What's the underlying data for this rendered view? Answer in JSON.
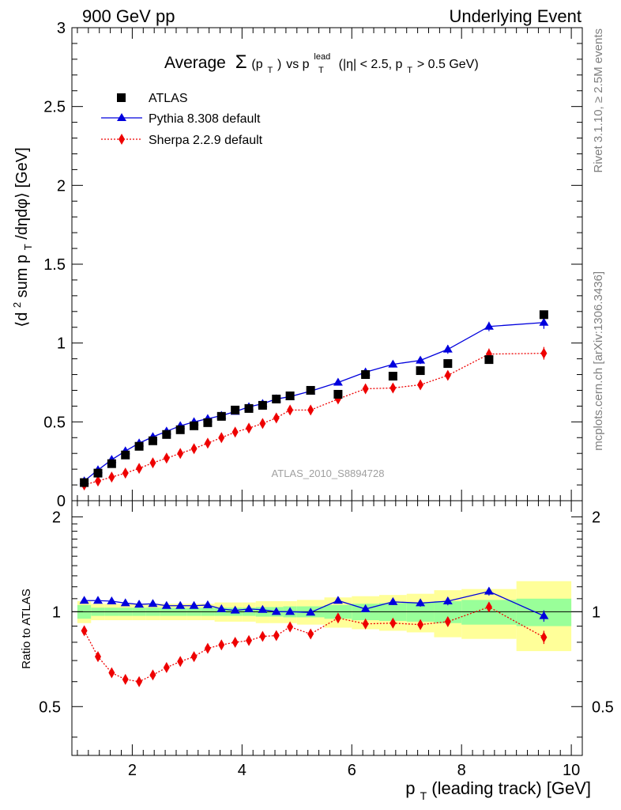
{
  "header": {
    "left": "900 GeV pp",
    "right": "Underlying Event"
  },
  "title": {
    "prefix": "Average",
    "sigma": "Σ",
    "sigma_arg": "(p",
    "sigma_sub": "T",
    "sigma_close": ")",
    "vs": " vs p",
    "vs_sub": "T",
    "vs_sup": "lead",
    "cut1": " (|η| < 2.5, p",
    "cut_sub": "T",
    "cut2": " > 0.5 GeV)"
  },
  "side_labels": {
    "top": "Rivet 3.1.10, ≥ 2.5M events",
    "bottom": "mcplots.cern.ch [arXiv:1306.3436]"
  },
  "watermark": "ATLAS_2010_S8894728",
  "colors": {
    "atlas": "#000000",
    "pythia": "#0000dd",
    "sherpa": "#ee0000",
    "band_inner": "#99ff99",
    "band_outer": "#ffff99"
  },
  "chart_data": [
    {
      "type": "scatter",
      "panel": "main",
      "ylabel": {
        "pre": "⟨d",
        "sup": "2",
        "mid": " sum p",
        "sub": "T",
        "post": "/dηdφ⟩ [GeV]"
      },
      "ylim": [
        0,
        3
      ],
      "xlim": [
        0.9,
        10.2
      ],
      "yticks": [
        {
          "v": 0,
          "label": "0"
        },
        {
          "v": 0.5,
          "label": "0.5"
        },
        {
          "v": 1,
          "label": "1"
        },
        {
          "v": 1.5,
          "label": "1.5"
        },
        {
          "v": 2,
          "label": "2"
        },
        {
          "v": 2.5,
          "label": "2.5"
        },
        {
          "v": 3,
          "label": "3"
        }
      ],
      "legend_position": "top-left",
      "x": [
        1.125,
        1.375,
        1.625,
        1.875,
        2.125,
        2.375,
        2.625,
        2.875,
        3.125,
        3.375,
        3.625,
        3.875,
        4.125,
        4.375,
        4.625,
        4.875,
        5.25,
        5.75,
        6.25,
        6.75,
        7.25,
        7.75,
        8.5,
        9.5
      ],
      "series": [
        {
          "name": "ATLAS",
          "marker": "square",
          "values": [
            0.115,
            0.175,
            0.235,
            0.29,
            0.345,
            0.38,
            0.42,
            0.45,
            0.475,
            0.495,
            0.535,
            0.575,
            0.585,
            0.605,
            0.645,
            0.665,
            0.7,
            0.675,
            0.8,
            0.79,
            0.825,
            0.87,
            0.895,
            1.18
          ]
        },
        {
          "name": "Pythia 8.308 default",
          "marker": "triangle",
          "values": [
            0.125,
            0.195,
            0.26,
            0.315,
            0.365,
            0.405,
            0.44,
            0.475,
            0.5,
            0.52,
            0.54,
            0.565,
            0.595,
            0.615,
            0.645,
            0.66,
            0.695,
            0.75,
            0.815,
            0.865,
            0.89,
            0.96,
            1.105,
            1.13
          ],
          "errors": [
            0.005,
            0.005,
            0.005,
            0.005,
            0.005,
            0.005,
            0.005,
            0.005,
            0.005,
            0.005,
            0.006,
            0.007,
            0.008,
            0.009,
            0.01,
            0.01,
            0.012,
            0.014,
            0.017,
            0.02,
            0.023,
            0.028,
            0.03,
            0.04
          ]
        },
        {
          "name": "Sherpa 2.2.9 default",
          "marker": "diamond",
          "values": [
            0.1,
            0.125,
            0.15,
            0.175,
            0.205,
            0.24,
            0.27,
            0.3,
            0.33,
            0.365,
            0.4,
            0.435,
            0.46,
            0.49,
            0.525,
            0.575,
            0.575,
            0.645,
            0.71,
            0.715,
            0.735,
            0.795,
            0.93,
            0.935
          ],
          "errors": [
            0.004,
            0.004,
            0.004,
            0.004,
            0.005,
            0.005,
            0.005,
            0.005,
            0.006,
            0.006,
            0.007,
            0.008,
            0.009,
            0.01,
            0.011,
            0.012,
            0.014,
            0.016,
            0.018,
            0.02,
            0.024,
            0.028,
            0.035,
            0.04
          ]
        }
      ]
    },
    {
      "type": "scatter",
      "panel": "ratio",
      "ylabel": "Ratio to ATLAS",
      "xlabel": {
        "pre": "p",
        "sub": "T",
        "post": " (leading track) [GeV]"
      },
      "ylim": [
        0.35,
        2.25
      ],
      "xlim": [
        0.9,
        10.2
      ],
      "yticks": [
        {
          "v": 0.5,
          "label": "0.5"
        },
        {
          "v": 1,
          "label": "1"
        },
        {
          "v": 2,
          "label": "2"
        }
      ],
      "xticks": [
        {
          "v": 2,
          "label": "2"
        },
        {
          "v": 4,
          "label": "4"
        },
        {
          "v": 6,
          "label": "6"
        },
        {
          "v": 8,
          "label": "8"
        },
        {
          "v": 10,
          "label": "10"
        }
      ],
      "bands": {
        "edges": [
          1.0,
          1.25,
          1.5,
          1.75,
          2.0,
          2.25,
          2.5,
          2.75,
          3.0,
          3.25,
          3.5,
          3.75,
          4.0,
          4.25,
          4.5,
          4.75,
          5.0,
          5.5,
          6.0,
          6.5,
          7.0,
          7.5,
          8.0,
          9.0,
          10.0
        ],
        "inner": [
          0.05,
          0.03,
          0.03,
          0.03,
          0.03,
          0.03,
          0.03,
          0.03,
          0.03,
          0.03,
          0.03,
          0.03,
          0.03,
          0.035,
          0.035,
          0.04,
          0.04,
          0.05,
          0.06,
          0.065,
          0.07,
          0.08,
          0.09,
          0.1
        ],
        "outer": [
          0.08,
          0.06,
          0.06,
          0.06,
          0.06,
          0.06,
          0.06,
          0.06,
          0.06,
          0.06,
          0.07,
          0.07,
          0.07,
          0.08,
          0.08,
          0.08,
          0.09,
          0.11,
          0.12,
          0.13,
          0.14,
          0.17,
          0.18,
          0.25
        ]
      },
      "x": [
        1.125,
        1.375,
        1.625,
        1.875,
        2.125,
        2.375,
        2.625,
        2.875,
        3.125,
        3.375,
        3.625,
        3.875,
        4.125,
        4.375,
        4.625,
        4.875,
        5.25,
        5.75,
        6.25,
        6.75,
        7.25,
        7.75,
        8.5,
        9.5
      ],
      "series": [
        {
          "name": "Pythia 8.308 default",
          "marker": "triangle",
          "values": [
            1.085,
            1.085,
            1.08,
            1.065,
            1.055,
            1.06,
            1.045,
            1.045,
            1.045,
            1.05,
            1.02,
            1.01,
            1.02,
            1.015,
            1.0,
            1.0,
            0.995,
            1.085,
            1.02,
            1.075,
            1.065,
            1.08,
            1.16,
            0.97
          ],
          "errors": [
            0.01,
            0.01,
            0.01,
            0.01,
            0.01,
            0.01,
            0.01,
            0.01,
            0.01,
            0.01,
            0.01,
            0.012,
            0.013,
            0.014,
            0.015,
            0.016,
            0.018,
            0.02,
            0.022,
            0.025,
            0.028,
            0.032,
            0.035,
            0.04
          ]
        },
        {
          "name": "Sherpa 2.2.9 default",
          "marker": "diamond",
          "values": [
            0.87,
            0.72,
            0.64,
            0.61,
            0.6,
            0.63,
            0.665,
            0.695,
            0.72,
            0.765,
            0.785,
            0.8,
            0.81,
            0.835,
            0.84,
            0.895,
            0.85,
            0.955,
            0.915,
            0.92,
            0.91,
            0.93,
            1.035,
            0.83
          ],
          "errors": [
            0.01,
            0.01,
            0.01,
            0.01,
            0.01,
            0.01,
            0.01,
            0.01,
            0.01,
            0.01,
            0.012,
            0.012,
            0.013,
            0.014,
            0.015,
            0.016,
            0.018,
            0.02,
            0.022,
            0.025,
            0.028,
            0.032,
            0.035,
            0.04
          ]
        }
      ]
    }
  ]
}
